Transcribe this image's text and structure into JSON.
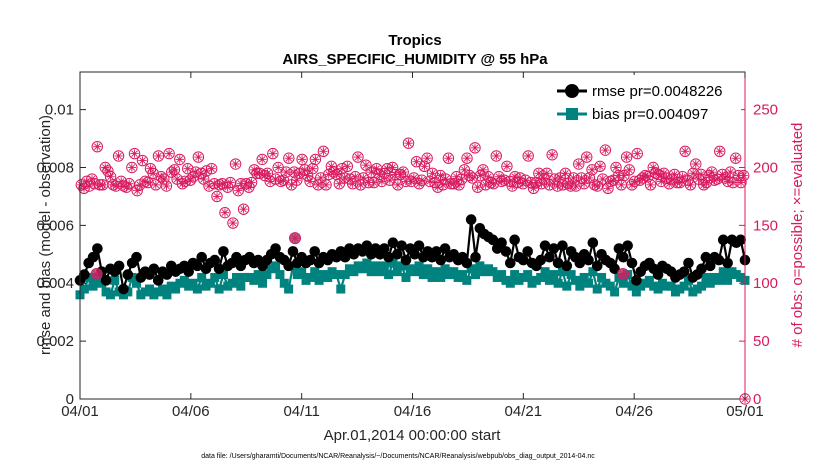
{
  "chart_data": {
    "type": "line",
    "title": "Tropics",
    "subtitle": "AIRS_SPECIFIC_HUMIDITY @ 55 hPa",
    "xlabel": "Apr.01,2014 00:00:00 start",
    "ylabel": "rmse and bias (model - observation)",
    "ylabel_right": "# of obs: o=possible; ×=evaluated",
    "footer": "data file: /Users/gharamti/Documents/NCAR/Reanalysis/~/Documents/NCAR/Reanalysis/webpub/obs_diag_output_2014-04.nc",
    "x_range": [
      0,
      30
    ],
    "x_ticks": [
      0,
      5,
      10,
      15,
      20,
      25,
      30
    ],
    "x_tick_labels": [
      "04/01",
      "04/06",
      "04/11",
      "04/16",
      "04/21",
      "04/26",
      "05/01"
    ],
    "ylim": [
      0,
      0.0113
    ],
    "y_ticks": [
      0,
      0.002,
      0.004,
      0.006,
      0.008,
      0.01
    ],
    "y_tick_labels": [
      "0",
      "0.002",
      "0.004",
      "0.006",
      "0.008",
      "0.01"
    ],
    "ylim_right": [
      0,
      282.5
    ],
    "y_ticks_right": [
      0,
      50,
      100,
      150,
      200,
      250
    ],
    "y_tick_labels_right": [
      "0",
      "50",
      "100",
      "150",
      "200",
      "250"
    ],
    "series": [
      {
        "name": "rmse pr=0.0048226",
        "color": "#000000",
        "values": [
          0.0041,
          0.0043,
          0.0047,
          0.0049,
          0.0052,
          0.0044,
          0.0041,
          0.0045,
          0.0044,
          0.0046,
          0.0038,
          0.0043,
          0.0047,
          0.0049,
          0.0042,
          0.0044,
          0.0043,
          0.0045,
          0.0041,
          0.0044,
          0.0043,
          0.0046,
          0.0044,
          0.0045,
          0.0046,
          0.0044,
          0.0047,
          0.0046,
          0.0049,
          0.0045,
          0.0047,
          0.0048,
          0.0045,
          0.0051,
          0.0046,
          0.0047,
          0.0049,
          0.0046,
          0.0048,
          0.0049,
          0.0047,
          0.0048,
          0.0046,
          0.0048,
          0.005,
          0.0052,
          0.0049,
          0.0048,
          0.0046,
          0.0051,
          0.0047,
          0.0049,
          0.0047,
          0.0048,
          0.0051,
          0.0047,
          0.0049,
          0.0048,
          0.005,
          0.0049,
          0.0051,
          0.0049,
          0.0052,
          0.005,
          0.0052,
          0.0051,
          0.0053,
          0.005,
          0.0052,
          0.005,
          0.0052,
          0.0049,
          0.0054,
          0.005,
          0.0053,
          0.0048,
          0.0052,
          0.005,
          0.0053,
          0.0049,
          0.0051,
          0.0049,
          0.0051,
          0.0048,
          0.0052,
          0.0049,
          0.005,
          0.0048,
          0.0049,
          0.0047,
          0.0062,
          0.0049,
          0.0059,
          0.0057,
          0.0056,
          0.0055,
          0.0052,
          0.0054,
          0.0051,
          0.0047,
          0.0055,
          0.0049,
          0.0048,
          0.0051,
          0.0047,
          0.0046,
          0.0048,
          0.0053,
          0.0049,
          0.0052,
          0.0047,
          0.0053,
          0.0046,
          0.0051,
          0.0049,
          0.0047,
          0.005,
          0.0048,
          0.0054,
          0.0046,
          0.005,
          0.0048,
          0.0047,
          0.0045,
          0.0052,
          0.0049,
          0.0053,
          0.0047,
          0.0041,
          0.0044,
          0.0046,
          0.0047,
          0.0045,
          0.0043,
          0.0046,
          0.0045,
          0.0044,
          0.0042,
          0.0043,
          0.0044,
          0.0047,
          0.0042,
          0.0043,
          0.0045,
          0.0049,
          0.0046,
          0.0049,
          0.0048,
          0.0055,
          0.0047,
          0.0055,
          0.0054,
          0.0055,
          0.0048
        ]
      },
      {
        "name": "bias pr=0.004097",
        "color": "#00827f",
        "values": [
          0.0036,
          0.0038,
          0.0042,
          0.0039,
          0.0042,
          0.004,
          0.0037,
          0.0036,
          0.0041,
          0.0037,
          0.0036,
          0.0037,
          0.0042,
          0.004,
          0.0036,
          0.0037,
          0.0038,
          0.0036,
          0.0037,
          0.0038,
          0.0036,
          0.0039,
          0.0038,
          0.004,
          0.0041,
          0.0039,
          0.004,
          0.0038,
          0.0042,
          0.0039,
          0.004,
          0.0042,
          0.0038,
          0.0043,
          0.0039,
          0.004,
          0.0042,
          0.0039,
          0.0042,
          0.0042,
          0.0041,
          0.0043,
          0.004,
          0.0043,
          0.0045,
          0.0046,
          0.0043,
          0.004,
          0.0038,
          0.0046,
          0.0043,
          0.0044,
          0.0041,
          0.0042,
          0.0044,
          0.0041,
          0.0043,
          0.0042,
          0.0044,
          0.0043,
          0.0038,
          0.0043,
          0.0045,
          0.0044,
          0.0046,
          0.0045,
          0.0047,
          0.0044,
          0.0046,
          0.0044,
          0.0046,
          0.0043,
          0.0047,
          0.0044,
          0.0046,
          0.0042,
          0.0045,
          0.0044,
          0.0046,
          0.0043,
          0.0045,
          0.0042,
          0.0044,
          0.0042,
          0.0045,
          0.0043,
          0.0044,
          0.0042,
          0.0043,
          0.0041,
          0.0045,
          0.0043,
          0.0046,
          0.0044,
          0.0045,
          0.0044,
          0.0042,
          0.0043,
          0.0041,
          0.004,
          0.0043,
          0.0041,
          0.0042,
          0.0043,
          0.004,
          0.0041,
          0.0042,
          0.0044,
          0.0041,
          0.0043,
          0.004,
          0.0044,
          0.0039,
          0.0043,
          0.0041,
          0.0039,
          0.0042,
          0.004,
          0.0044,
          0.0038,
          0.0042,
          0.004,
          0.0039,
          0.0037,
          0.0042,
          0.004,
          0.0043,
          0.0039,
          0.0037,
          0.0039,
          0.004,
          0.0041,
          0.0039,
          0.0038,
          0.004,
          0.0039,
          0.0039,
          0.0037,
          0.0038,
          0.0039,
          0.0041,
          0.0037,
          0.0038,
          0.0039,
          0.0042,
          0.004,
          0.0042,
          0.0041,
          0.0044,
          0.0041,
          0.0044,
          0.0043,
          0.0042,
          0.0041
        ]
      },
      {
        "name": "# of obs possible (o)",
        "color": "#d81b60",
        "axis": "right",
        "values": [
          185,
          182,
          188,
          184,
          190,
          186,
          218,
          185,
          185,
          200,
          197,
          192,
          185,
          184,
          210,
          188,
          184,
          183,
          186,
          200,
          212,
          180,
          185,
          206,
          188,
          187,
          199,
          195,
          185,
          210,
          192,
          190,
          184,
          212,
          196,
          198,
          190,
          207,
          186,
          188,
          199,
          189,
          192,
          196,
          209,
          195,
          190,
          197,
          184,
          199,
          186,
          175,
          185,
          186,
          161,
          183,
          187,
          152,
          203,
          180,
          186,
          164,
          186,
          183,
          187,
          198,
          195,
          195,
          207,
          193,
          195,
          188,
          212,
          190,
          200,
          188,
          189,
          196,
          208,
          185,
          196,
          189,
          195,
          207,
          198,
          193,
          188,
          199,
          207,
          185,
          191,
          214,
          185,
          194,
          201,
          196,
          194,
          186,
          199,
          191,
          201,
          190,
          186,
          192,
          209,
          185,
          191,
          202,
          187,
          196,
          187,
          199,
          194,
          188,
          195,
          199,
          189,
          200,
          194,
          185,
          194,
          196,
          188,
          221,
          188,
          191,
          205,
          186,
          189,
          201,
          208,
          188,
          195,
          187,
          183,
          193,
          185,
          190,
          208,
          186,
          186,
          192,
          185,
          190,
          198,
          208,
          193,
          191,
          217,
          183,
          193,
          198,
          185,
          192,
          187,
          186,
          210,
          192,
          188,
          189,
          201,
          188,
          184,
          192,
          187,
          191,
          186,
          189,
          210,
          187,
          182,
          187,
          195,
          186,
          190,
          195,
          185,
          211,
          190,
          184,
          191,
          185,
          195,
          186,
          184,
          191,
          184,
          203,
          191,
          186,
          209,
          191,
          198,
          185,
          184,
          201,
          190,
          215,
          182,
          188,
          189,
          200,
          193,
          185,
          193,
          209,
          198,
          185,
          188,
          212,
          189,
          191,
          193,
          192,
          185,
          200,
          195,
          194,
          188,
          195,
          191,
          186,
          190,
          194,
          187,
          187,
          192,
          214,
          189,
          185,
          195,
          203,
          190,
          194,
          185,
          187,
          193,
          196,
          189,
          190,
          214,
          194,
          191,
          188,
          196,
          187,
          208,
          193,
          187,
          193
        ]
      },
      {
        "name": "# of obs evaluated (×)",
        "color": "#d81b60",
        "axis": "right",
        "note": "coincides with possible counts"
      }
    ],
    "highlighted_markers": [
      {
        "x": 0.75,
        "y_right": 108
      },
      {
        "x": 9.7,
        "y_right": 139
      },
      {
        "x": 24.5,
        "y_right": 108
      }
    ],
    "legend_position": "top-right",
    "grid": false
  }
}
